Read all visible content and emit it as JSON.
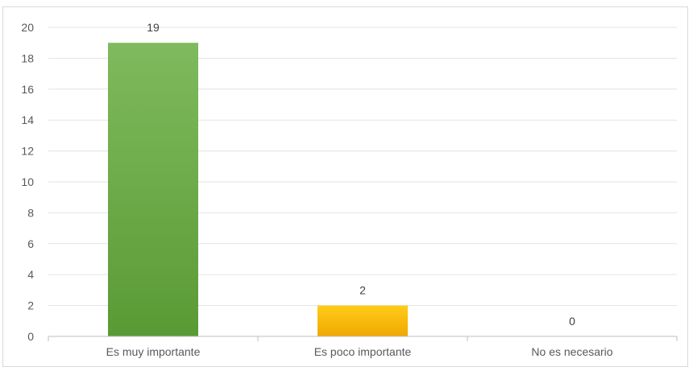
{
  "chart_data": {
    "type": "bar",
    "categories": [
      "Es muy importante",
      "Es poco importante",
      "No es necesario"
    ],
    "values": [
      19,
      2,
      0
    ],
    "data_labels": [
      "19",
      "2",
      "0"
    ],
    "title": "",
    "xlabel": "",
    "ylabel": "",
    "ylim": [
      0,
      20
    ],
    "yticks": [
      "0",
      "2",
      "4",
      "6",
      "8",
      "10",
      "12",
      "14",
      "16",
      "18",
      "20"
    ],
    "grid": true,
    "legend": "none",
    "colors": {
      "bar_1_top": "#7fba5e",
      "bar_1_bottom": "#5a9a34",
      "bar_2_top": "#ffcc1a",
      "bar_2_bottom": "#f0a800",
      "bar_3": "#a5a5a5",
      "gridline": "#e3e3e3",
      "axis": "#bfbfbf",
      "text": "#595959"
    }
  }
}
